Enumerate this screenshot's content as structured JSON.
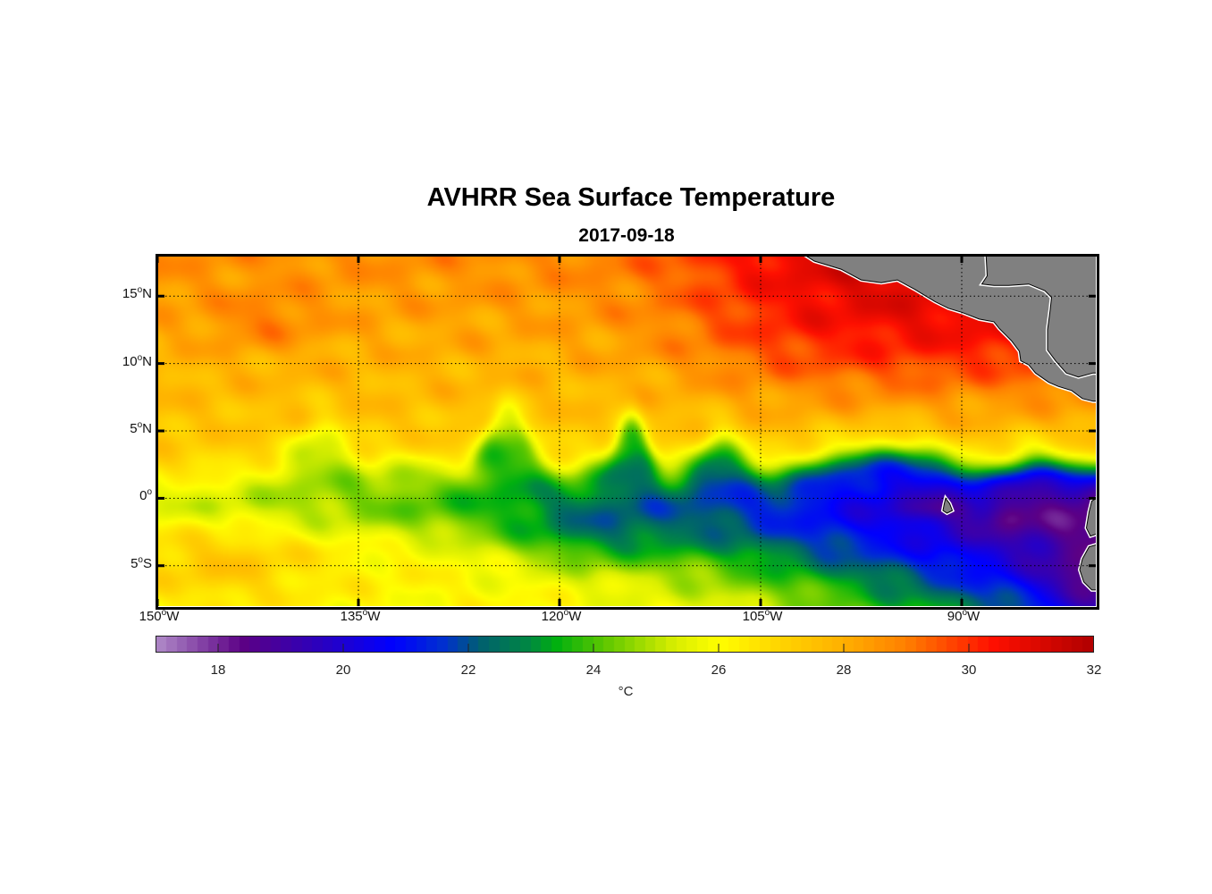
{
  "chart_data": {
    "type": "heatmap",
    "title": "AVHRR Sea Surface Temperature",
    "subtitle": "2017-09-18",
    "xlim": [
      -150,
      -80
    ],
    "ylim": [
      -8,
      18
    ],
    "x_ticks": [
      {
        "value": -150,
        "num": "150",
        "suffix": "W"
      },
      {
        "value": -135,
        "num": "135",
        "suffix": "W"
      },
      {
        "value": -120,
        "num": "120",
        "suffix": "W"
      },
      {
        "value": -105,
        "num": "105",
        "suffix": "W"
      },
      {
        "value": -90,
        "num": "90",
        "suffix": "W"
      }
    ],
    "y_ticks": [
      {
        "value": 15,
        "num": "15",
        "suffix": "N"
      },
      {
        "value": 10,
        "num": "10",
        "suffix": "N"
      },
      {
        "value": 5,
        "num": "5",
        "suffix": "N"
      },
      {
        "value": 0,
        "num": "0",
        "suffix": ""
      },
      {
        "value": -5,
        "num": "5",
        "suffix": "S"
      }
    ],
    "degree_symbol": "o",
    "grid": "dotted",
    "colorbar": {
      "range": [
        17,
        32
      ],
      "ticks": [
        "18",
        "20",
        "22",
        "24",
        "26",
        "28",
        "30",
        "32"
      ],
      "tick_values": [
        18,
        20,
        22,
        24,
        26,
        28,
        30,
        32
      ],
      "unit": "°C",
      "stops": [
        [
          17,
          "#b08cc8"
        ],
        [
          18.4,
          "#5c0085"
        ],
        [
          19.5,
          "#3000b8"
        ],
        [
          20.8,
          "#0000ff"
        ],
        [
          21.6,
          "#0030d0"
        ],
        [
          22.2,
          "#006070"
        ],
        [
          23.0,
          "#008a40"
        ],
        [
          23.4,
          "#00b010"
        ],
        [
          24.2,
          "#60c800"
        ],
        [
          25.3,
          "#d8ee00"
        ],
        [
          26.0,
          "#ffff00"
        ],
        [
          26.8,
          "#ffdc00"
        ],
        [
          28.0,
          "#ffb000"
        ],
        [
          29.0,
          "#ff8000"
        ],
        [
          30.4,
          "#ff1000"
        ],
        [
          32,
          "#b00000"
        ]
      ]
    },
    "land_color": "#808080",
    "land": [
      [
        [
          -102.1,
          18.3
        ],
        [
          -101,
          17.6
        ],
        [
          -99,
          17
        ],
        [
          -97.5,
          16.2
        ],
        [
          -96,
          16
        ],
        [
          -94.8,
          16.2
        ],
        [
          -93.5,
          15.5
        ],
        [
          -92,
          14.6
        ],
        [
          -91,
          14.1
        ],
        [
          -90,
          13.8
        ],
        [
          -88.7,
          13.3
        ],
        [
          -87.6,
          13.1
        ],
        [
          -87.2,
          12.6
        ],
        [
          -86.3,
          11.7
        ],
        [
          -85.7,
          10.9
        ],
        [
          -85.6,
          10.2
        ],
        [
          -85,
          9.9
        ],
        [
          -84.5,
          9.3
        ],
        [
          -83.5,
          8.6
        ],
        [
          -82.8,
          8.3
        ],
        [
          -81.8,
          8.0
        ],
        [
          -81,
          7.4
        ],
        [
          -80.2,
          7.2
        ],
        [
          -79.8,
          7.2
        ],
        [
          -79.8,
          18.3
        ]
      ],
      [
        [
          -88.2,
          18.3
        ],
        [
          -88.1,
          16.5
        ],
        [
          -88.5,
          15.9
        ],
        [
          -87.6,
          15.8
        ],
        [
          -86.5,
          15.8
        ],
        [
          -85,
          15.9
        ],
        [
          -83.8,
          15.4
        ],
        [
          -83.3,
          14.9
        ],
        [
          -83.4,
          14
        ],
        [
          -83.6,
          12.5
        ],
        [
          -83.6,
          11
        ],
        [
          -83,
          10.2
        ],
        [
          -82.2,
          9.3
        ],
        [
          -81.3,
          9
        ],
        [
          -80.2,
          9.3
        ],
        [
          -79.8,
          9.3
        ],
        [
          -79.8,
          18.3
        ]
      ],
      [
        [
          -79.8,
          0.1
        ],
        [
          -80.3,
          -0.2
        ],
        [
          -80.5,
          -1
        ],
        [
          -80.7,
          -2.2
        ],
        [
          -80.4,
          -2.8
        ],
        [
          -79.8,
          -2.6
        ]
      ],
      [
        [
          -79.8,
          -3.4
        ],
        [
          -80.5,
          -3.6
        ],
        [
          -81,
          -4.5
        ],
        [
          -81.2,
          -5.3
        ],
        [
          -80.9,
          -6.2
        ],
        [
          -80.3,
          -6.8
        ],
        [
          -79.8,
          -6.8
        ]
      ],
      [
        [
          -91.2,
          0.0
        ],
        [
          -90.9,
          -0.4
        ],
        [
          -90.7,
          -0.9
        ],
        [
          -91.1,
          -1.1
        ],
        [
          -91.4,
          -0.9
        ],
        [
          -91.3,
          -0.4
        ]
      ]
    ]
  }
}
